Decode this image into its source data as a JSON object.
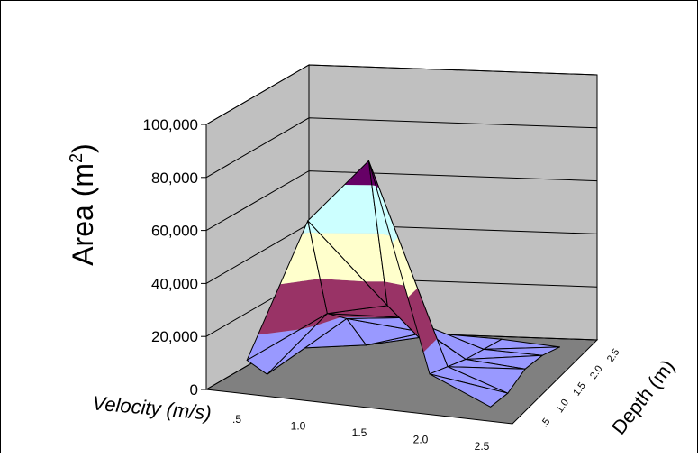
{
  "chart_data": {
    "type": "surface",
    "zlabel": "Area (m",
    "zlabel_sup": "2",
    "zlabel_close": ")",
    "xlabel": "Velocity (m/s)",
    "ylabel": "Depth (m)",
    "z_ticks": [
      "0",
      "20,000",
      "40,000",
      "60,000",
      "80,000",
      "100,000"
    ],
    "z_range": [
      0,
      100000
    ],
    "velocity_ticks": [
      ".5",
      "1.0",
      "1.5",
      "2.0",
      "2.5"
    ],
    "depth_ticks": [
      ".5",
      "1.0",
      "1.5",
      "2.0",
      "2.5"
    ],
    "velocity_values": [
      0.5,
      1.0,
      1.5,
      2.0,
      2.5
    ],
    "depth_values": [
      0.5,
      1.0,
      1.5,
      2.0,
      2.5
    ],
    "z_values": [
      [
        10000,
        65000,
        90000,
        12000,
        2000
      ],
      [
        0,
        25000,
        30000,
        9000,
        1000
      ],
      [
        5000,
        18000,
        20000,
        6000,
        4000
      ],
      [
        4000,
        3000,
        9000,
        4000,
        3000
      ],
      [
        2000,
        3000,
        3000,
        2000,
        0
      ]
    ],
    "color_bands": [
      {
        "from": 0,
        "to": 20000,
        "color": "#9999ff"
      },
      {
        "from": 20000,
        "to": 40000,
        "color": "#993366"
      },
      {
        "from": 40000,
        "to": 60000,
        "color": "#ffffcc"
      },
      {
        "from": 60000,
        "to": 80000,
        "color": "#ccffff"
      },
      {
        "from": 80000,
        "to": 100000,
        "color": "#660066"
      }
    ],
    "wall_color": "#c0c0c0",
    "floor_color": "#808080",
    "grid": true
  }
}
